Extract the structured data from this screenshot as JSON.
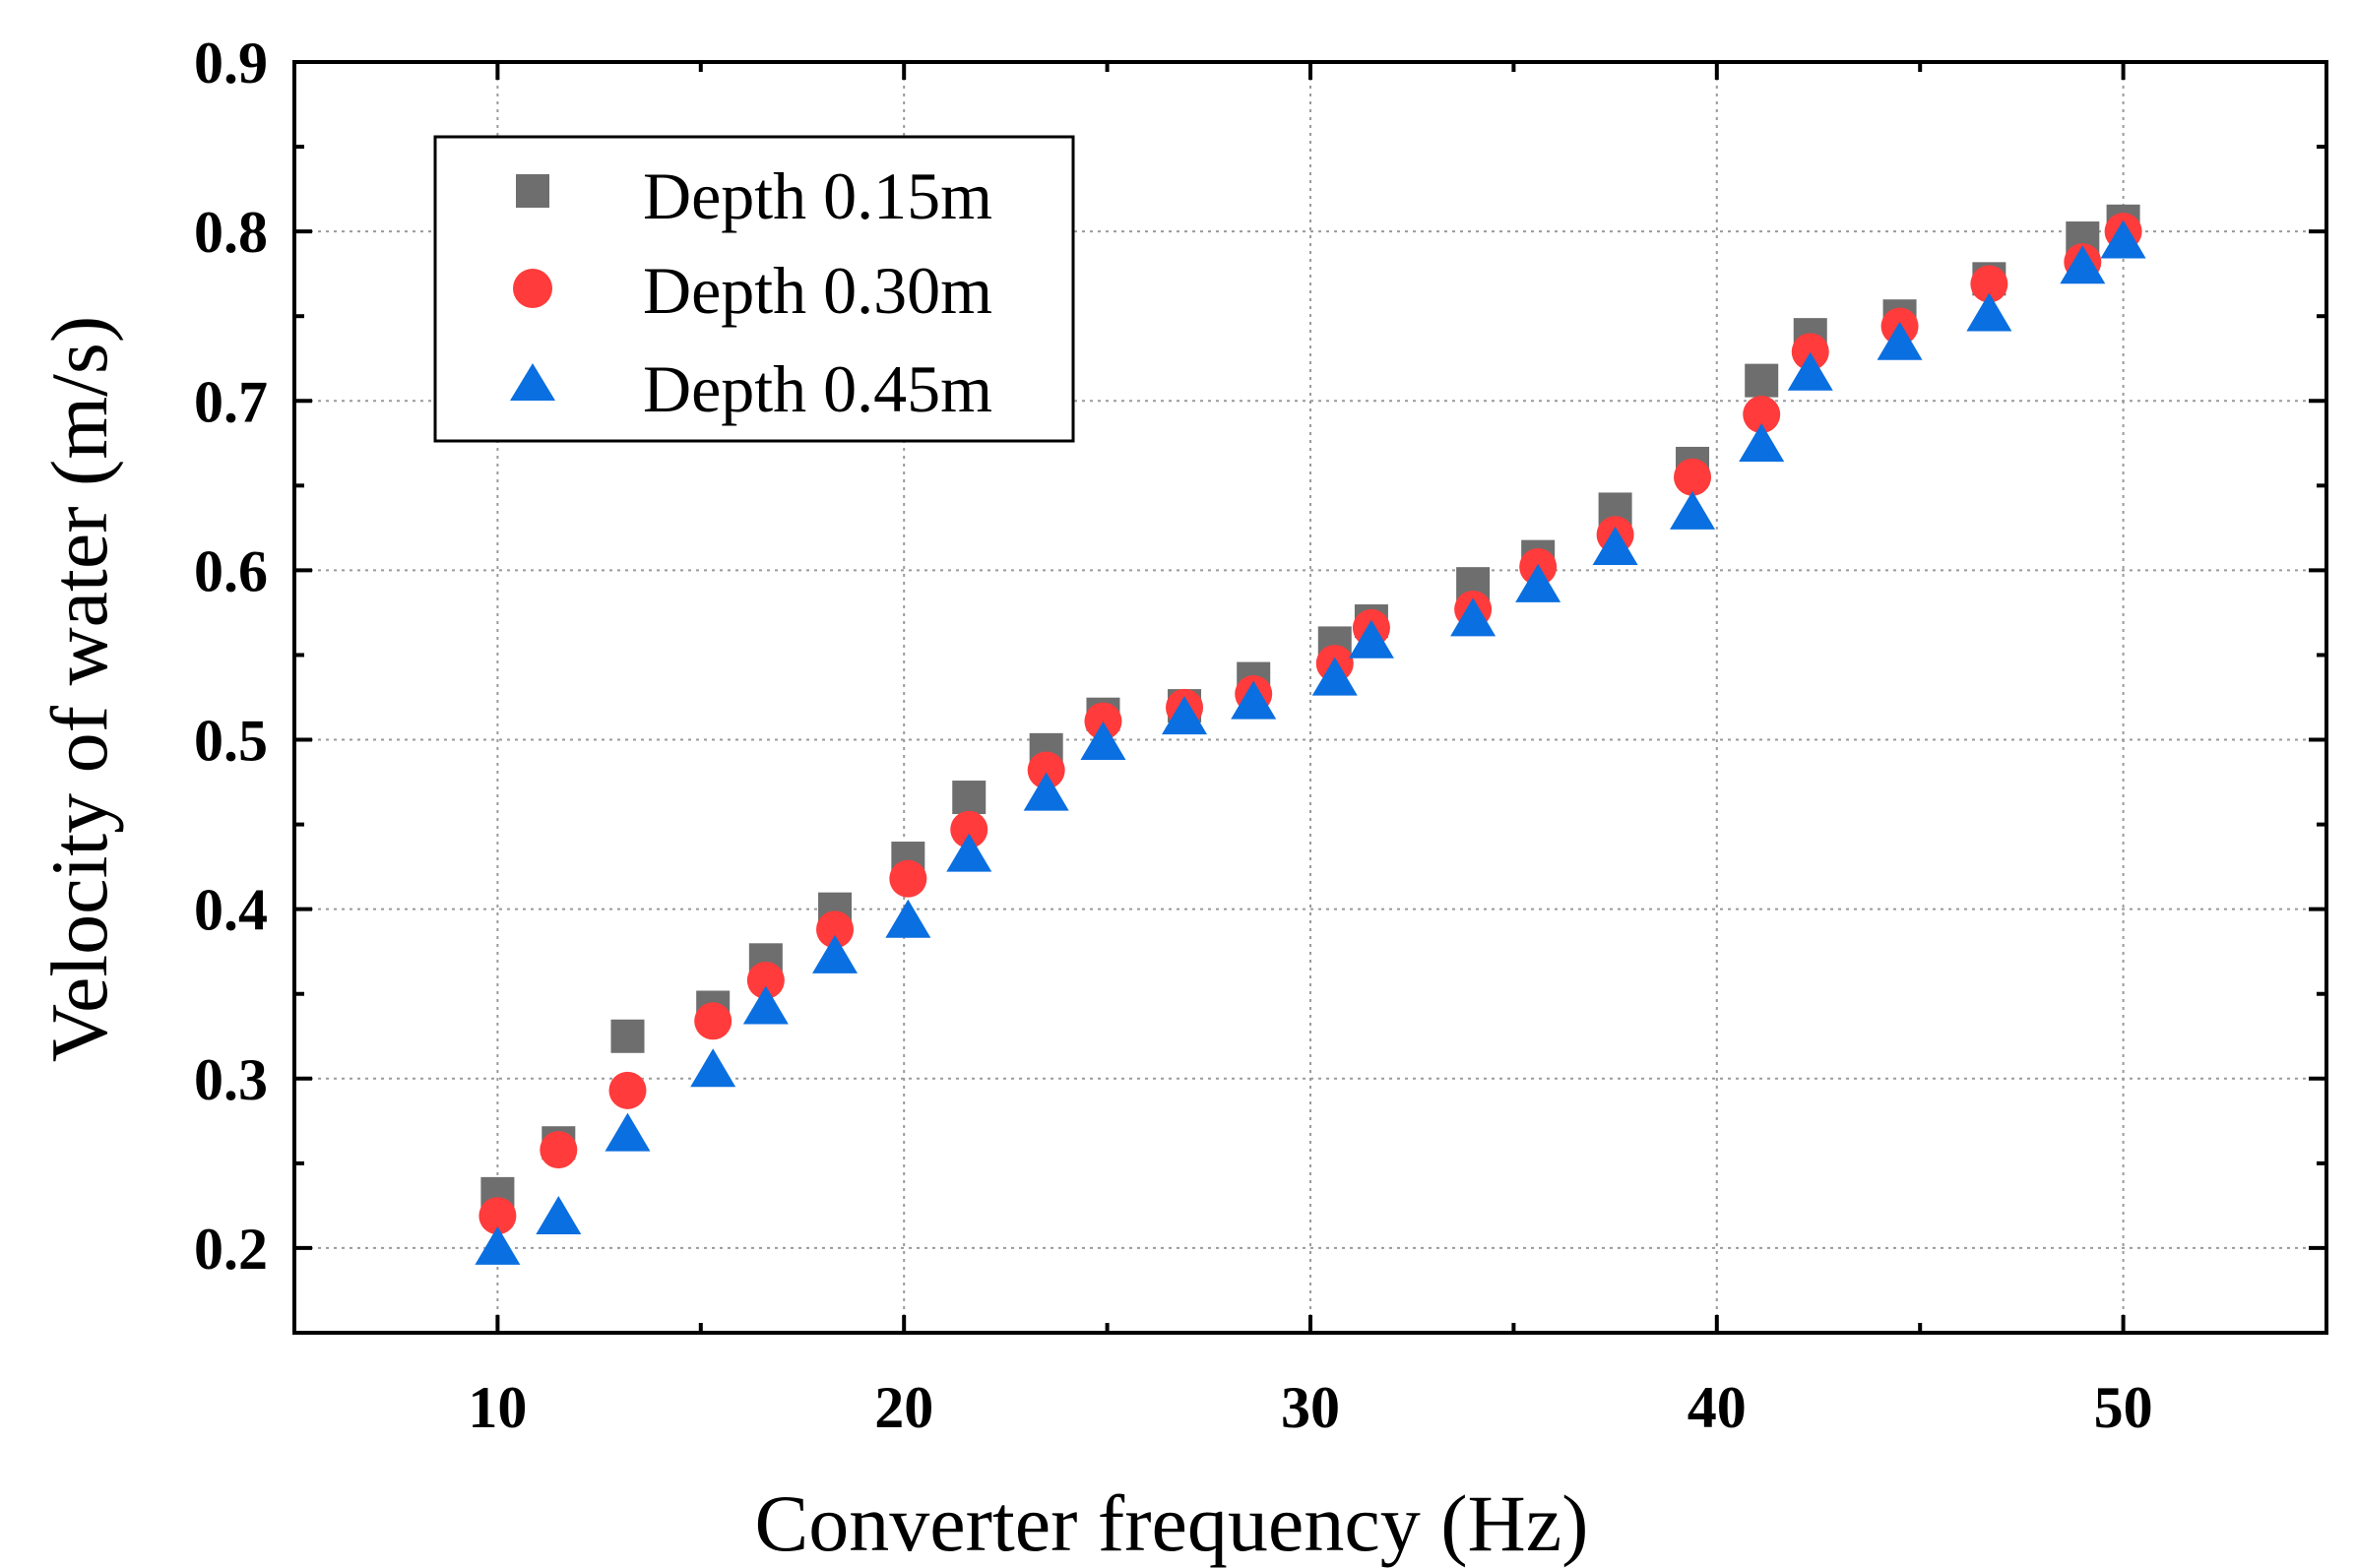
{
  "chart_data": {
    "type": "scatter",
    "title": "",
    "xlabel": "Converter frequency (Hz)",
    "ylabel": "Velocity of water (m/s)",
    "xlim": [
      5,
      55
    ],
    "ylim": [
      0.15,
      0.9
    ],
    "xticks": [
      10,
      20,
      30,
      40,
      50
    ],
    "xtick_labels": [
      "10",
      "20",
      "30",
      "40",
      "50"
    ],
    "yticks": [
      0.2,
      0.3,
      0.4,
      0.5,
      0.6,
      0.7,
      0.8,
      0.9
    ],
    "ytick_labels": [
      "0.2",
      "0.3",
      "0.4",
      "0.5",
      "0.6",
      "0.7",
      "0.8",
      "0.9"
    ],
    "grid": true,
    "legend_position": "top-left",
    "x": [
      10,
      11.5,
      13.2,
      15.3,
      16.6,
      18.3,
      20.1,
      21.6,
      23.5,
      24.9,
      26.9,
      28.6,
      30.6,
      31.5,
      34.0,
      35.6,
      37.5,
      39.4,
      41.1,
      42.3,
      44.5,
      46.7,
      49.0,
      50.0
    ],
    "series": [
      {
        "name": "Depth 0.15m",
        "marker": "square",
        "color": "#6e6e6e",
        "values": [
          0.232,
          0.262,
          0.325,
          0.342,
          0.37,
          0.4,
          0.43,
          0.466,
          0.494,
          0.515,
          0.52,
          0.536,
          0.557,
          0.57,
          0.592,
          0.608,
          0.636,
          0.663,
          0.712,
          0.739,
          0.75,
          0.772,
          0.796,
          0.806
        ]
      },
      {
        "name": "Depth 0.30m",
        "marker": "circle",
        "color": "#ff3b3b",
        "values": [
          0.219,
          0.258,
          0.293,
          0.334,
          0.358,
          0.388,
          0.418,
          0.447,
          0.482,
          0.511,
          0.519,
          0.527,
          0.545,
          0.566,
          0.577,
          0.602,
          0.621,
          0.655,
          0.692,
          0.729,
          0.744,
          0.769,
          0.782,
          0.8
        ]
      },
      {
        "name": "Depth 0.45m",
        "marker": "triangle",
        "color": "#0a6fe0",
        "values": [
          0.2,
          0.218,
          0.267,
          0.305,
          0.342,
          0.372,
          0.393,
          0.432,
          0.468,
          0.498,
          0.513,
          0.522,
          0.536,
          0.558,
          0.571,
          0.591,
          0.613,
          0.634,
          0.674,
          0.716,
          0.734,
          0.751,
          0.779,
          0.794
        ]
      }
    ]
  }
}
